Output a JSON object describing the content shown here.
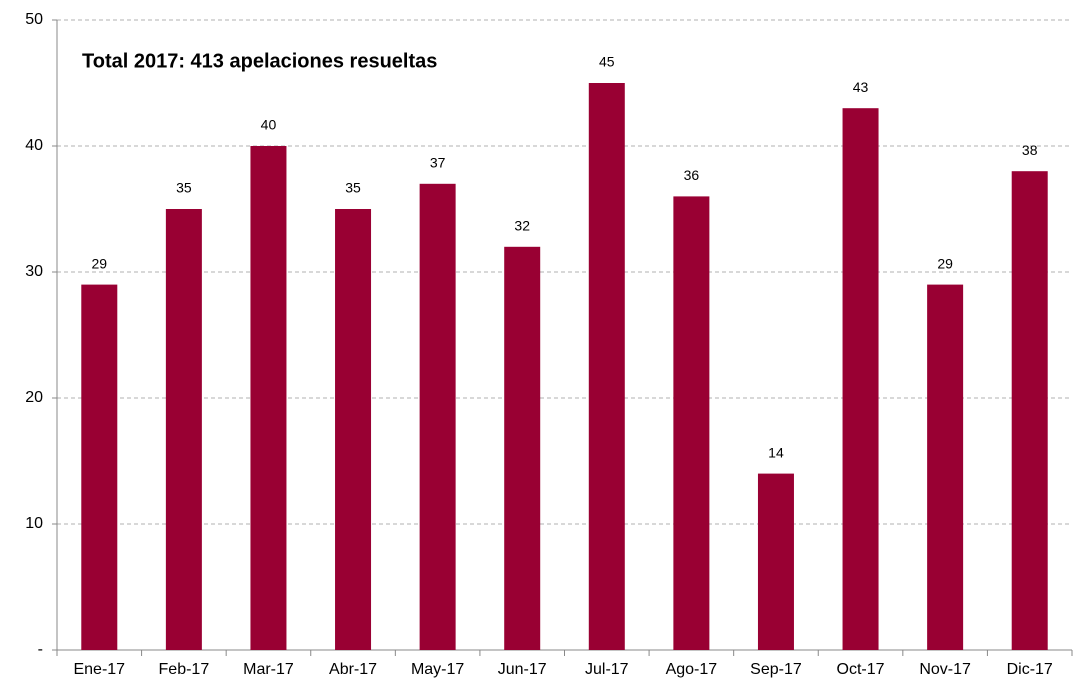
{
  "chart_data": {
    "type": "bar",
    "annotation": "Total 2017: 413 apelaciones resueltas",
    "categories": [
      "Ene-17",
      "Feb-17",
      "Mar-17",
      "Abr-17",
      "May-17",
      "Jun-17",
      "Jul-17",
      "Ago-17",
      "Sep-17",
      "Oct-17",
      "Nov-17",
      "Dic-17"
    ],
    "values": [
      29,
      35,
      40,
      35,
      37,
      32,
      45,
      36,
      14,
      43,
      29,
      38
    ],
    "color": "#990033",
    "ylim": [
      0,
      50
    ],
    "yticks": [
      {
        "value": 0,
        "label": "-"
      },
      10,
      20,
      30,
      40,
      50
    ],
    "grid": true
  }
}
